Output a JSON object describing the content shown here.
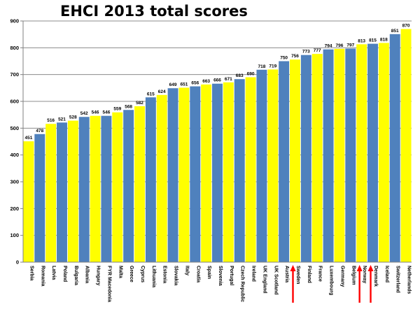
{
  "chart_data": {
    "type": "bar",
    "title": "EHCI 2013 total scores",
    "xlabel": "",
    "ylabel": "",
    "ylim": [
      0,
      900
    ],
    "yticks": [
      0,
      100,
      200,
      300,
      400,
      500,
      600,
      700,
      800,
      900
    ],
    "grid": true,
    "legend": "none",
    "categories": [
      "Serbia",
      "Romania",
      "Latvia",
      "Poland",
      "Bulgaria",
      "Albania",
      "Hungary",
      "FYR Macedonia",
      "Malta",
      "Greece",
      "Cyprus",
      "Lithuania",
      "Estonia",
      "Slovakia",
      "Italy",
      "Croatia",
      "Spain",
      "Slovenia",
      "Portugal",
      "Czech Republic",
      "Ireland",
      "UK England",
      "UK Scotland",
      "Austria",
      "Sweden",
      "Finland",
      "France",
      "Luxembourg",
      "Germany",
      "Belgium",
      "Norway",
      "Denmark",
      "Iceland",
      "Switzerland",
      "Netherlands"
    ],
    "values": [
      451,
      478,
      516,
      521,
      528,
      542,
      546,
      546,
      559,
      568,
      582,
      615,
      624,
      649,
      651,
      656,
      663,
      666,
      671,
      683,
      690,
      718,
      719,
      750,
      756,
      773,
      777,
      794,
      796,
      797,
      813,
      815,
      818,
      851,
      870
    ],
    "bar_colors": [
      "#ffff00",
      "#4f81bd"
    ],
    "highlighted": [
      "Sweden",
      "Norway",
      "Denmark"
    ],
    "highlight_color": "#ff0000"
  }
}
